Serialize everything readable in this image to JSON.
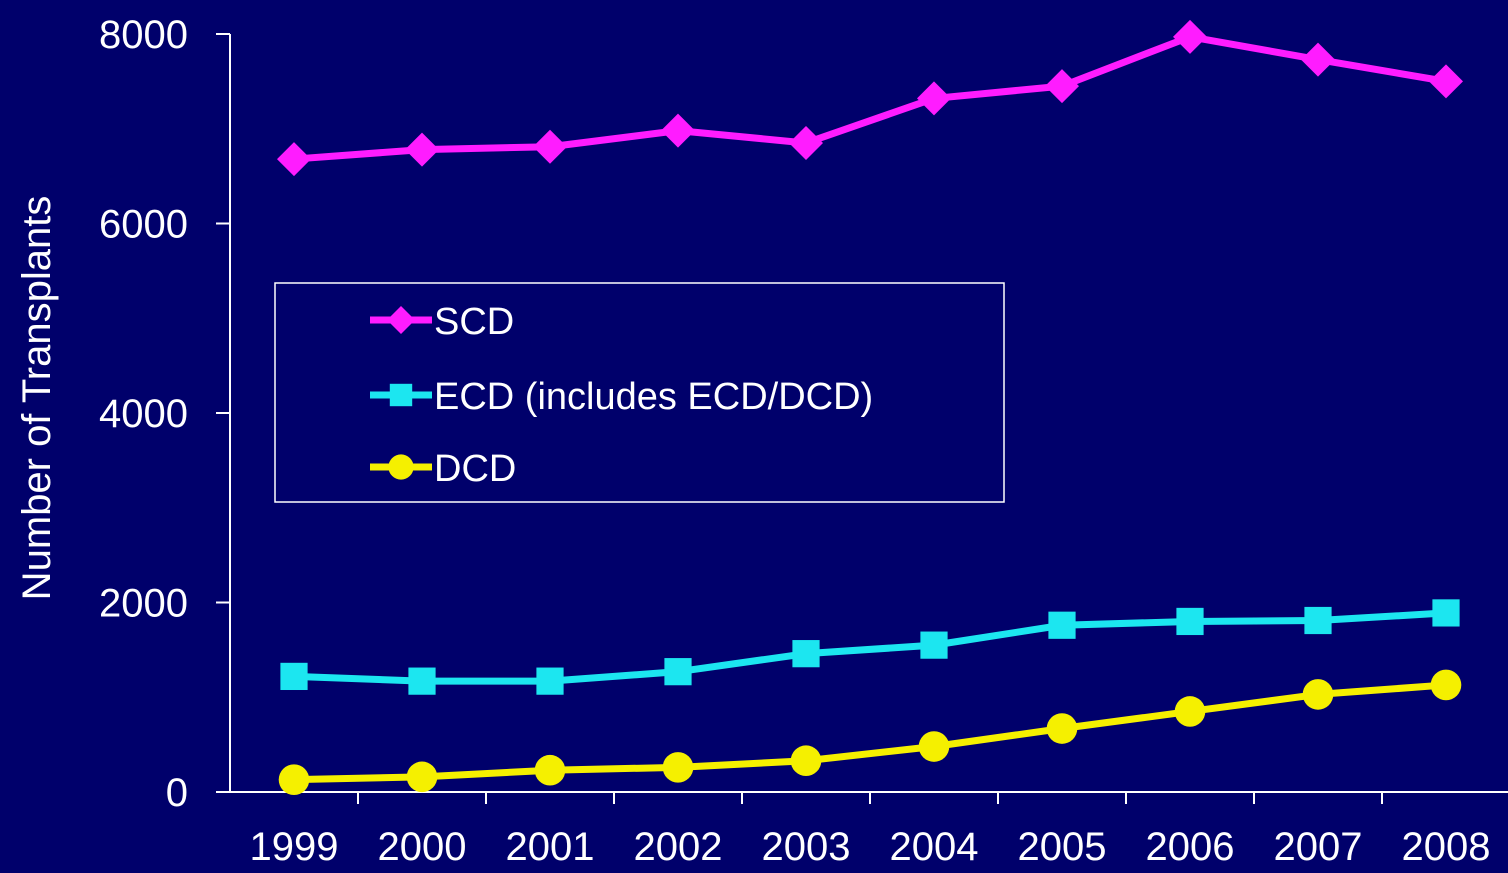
{
  "chart_data": {
    "type": "line",
    "title": "",
    "xlabel": "",
    "ylabel": "Number of Transplants",
    "categories": [
      "1999",
      "2000",
      "2001",
      "2002",
      "2003",
      "2004",
      "2005",
      "2006",
      "2007",
      "2008"
    ],
    "ylim": [
      0,
      8000
    ],
    "yticks": [
      "0",
      "2000",
      "4000",
      "6000",
      "8000"
    ],
    "grid": false,
    "legend_position": "center-left",
    "series": [
      {
        "name": "SCD",
        "color": "#ff1cff",
        "marker": "diamond",
        "values": [
          6680,
          6780,
          6810,
          6980,
          6850,
          7320,
          7450,
          7970,
          7730,
          7500
        ]
      },
      {
        "name": "ECD (includes ECD/DCD)",
        "color": "#1ce6f0",
        "marker": "square",
        "values": [
          1220,
          1170,
          1170,
          1270,
          1460,
          1550,
          1760,
          1800,
          1810,
          1890
        ]
      },
      {
        "name": "DCD",
        "color": "#f5f000",
        "marker": "circle",
        "values": [
          130,
          160,
          230,
          260,
          330,
          480,
          670,
          850,
          1030,
          1130
        ]
      }
    ]
  }
}
